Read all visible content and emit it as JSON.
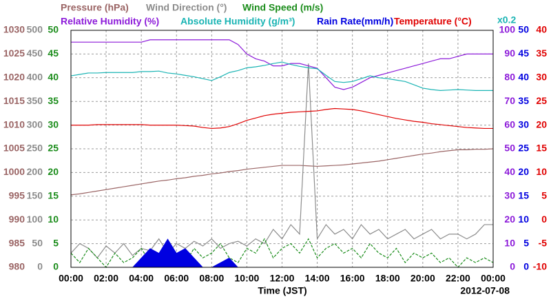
{
  "chart_data": {
    "type": "line",
    "xlim": [
      0,
      24
    ],
    "xticks": [
      {
        "value": 0,
        "label": "00:00"
      },
      {
        "value": 2,
        "label": "02:00"
      },
      {
        "value": 4,
        "label": "04:00"
      },
      {
        "value": 6,
        "label": "06:00"
      },
      {
        "value": 8,
        "label": "08:00"
      },
      {
        "value": 10,
        "label": "10:00"
      },
      {
        "value": 12,
        "label": "12:00"
      },
      {
        "value": 14,
        "label": "14:00"
      },
      {
        "value": 16,
        "label": "16:00"
      },
      {
        "value": 18,
        "label": "18:00"
      },
      {
        "value": 20,
        "label": "20:00"
      },
      {
        "value": 22,
        "label": "22:00"
      },
      {
        "value": 24,
        "label": "00:00"
      }
    ],
    "x_label": "Time (JST)",
    "date_label": "2012-07-08",
    "axis_note": "x0.2",
    "grid": true,
    "y_axes": [
      {
        "id": "pressure",
        "side": "left",
        "color": "#9a6464",
        "ylim": [
          980,
          1030
        ],
        "yticks": [
          980,
          985,
          990,
          995,
          1000,
          1005,
          1010,
          1015,
          1020,
          1025,
          1030
        ]
      },
      {
        "id": "winddir",
        "side": "left",
        "color": "#8c8c8c",
        "ylim": [
          0,
          500
        ],
        "yticks": [
          0,
          50,
          100,
          150,
          200,
          250,
          300,
          350,
          400,
          450,
          500
        ]
      },
      {
        "id": "windspeed",
        "side": "left",
        "color": "#1a8c1a",
        "ylim": [
          0,
          50
        ],
        "yticks": [
          0,
          5,
          10,
          15,
          20,
          25,
          30,
          35,
          40,
          45,
          50
        ]
      },
      {
        "id": "rh",
        "side": "right",
        "color": "#8c1ad9",
        "ylim": [
          0,
          100
        ],
        "yticks": [
          0,
          10,
          20,
          30,
          40,
          50,
          60,
          70,
          80,
          90,
          100
        ]
      },
      {
        "id": "rain",
        "side": "right",
        "color": "#0000e0",
        "ylim": [
          0,
          50
        ],
        "yticks": [
          0,
          5,
          10,
          15,
          20,
          25,
          30,
          35,
          40,
          45,
          50
        ]
      },
      {
        "id": "temp",
        "side": "right",
        "color": "#e00000",
        "ylim": [
          -10,
          40
        ],
        "yticks": [
          -10,
          -5,
          0,
          5,
          10,
          15,
          20,
          25,
          30,
          35,
          40
        ]
      }
    ],
    "x": [
      0,
      0.5,
      1,
      1.5,
      2,
      2.5,
      3,
      3.5,
      4,
      4.5,
      5,
      5.5,
      6,
      6.5,
      7,
      7.5,
      8,
      8.5,
      9,
      9.5,
      10,
      10.5,
      11,
      11.5,
      12,
      12.5,
      13,
      13.5,
      14,
      14.5,
      15,
      15.5,
      16,
      16.5,
      17,
      17.5,
      18,
      18.5,
      19,
      19.5,
      20,
      20.5,
      21,
      21.5,
      22,
      22.5,
      23,
      23.5,
      24
    ],
    "series": [
      {
        "name": "Pressure (hPa)",
        "color": "#9a6464",
        "axis": "pressure",
        "values": [
          995.3,
          995.5,
          995.8,
          996.1,
          996.4,
          996.7,
          997,
          997.3,
          997.6,
          997.9,
          998.2,
          998.4,
          998.7,
          998.9,
          999.2,
          999.4,
          999.7,
          999.9,
          1000.2,
          1000.4,
          1000.7,
          1000.9,
          1001.1,
          1001.3,
          1001.5,
          1001.5,
          1001.5,
          1001.4,
          1001.3,
          1001.4,
          1001.5,
          1001.6,
          1001.8,
          1002,
          1002.2,
          1002.4,
          1002.7,
          1003,
          1003.3,
          1003.6,
          1003.9,
          1004.1,
          1004.4,
          1004.6,
          1004.8,
          1004.8,
          1004.9,
          1004.9,
          1005
        ]
      },
      {
        "name": "Wind Direction (°)",
        "color": "#8c8c8c",
        "axis": "winddir",
        "values": [
          30,
          50,
          40,
          20,
          45,
          30,
          50,
          25,
          40,
          35,
          60,
          30,
          50,
          40,
          55,
          45,
          60,
          40,
          50,
          55,
          45,
          60,
          50,
          80,
          60,
          90,
          70,
          430,
          60,
          90,
          70,
          80,
          60,
          90,
          70,
          80,
          60,
          70,
          80,
          60,
          70,
          80,
          60,
          70,
          70,
          60,
          70,
          90,
          90
        ]
      },
      {
        "name": "Wind Speed (m/s)",
        "color": "#1a8c1a",
        "axis": "windspeed",
        "dashed": true,
        "values": [
          3,
          1,
          4,
          2,
          0,
          3,
          1,
          2,
          4,
          1,
          2,
          5,
          3,
          1,
          4,
          2,
          3,
          5,
          2,
          1,
          4,
          3,
          6,
          2,
          4,
          5,
          3,
          6,
          2,
          4,
          5,
          3,
          4,
          2,
          5,
          3,
          2,
          4,
          1,
          3,
          2,
          3,
          1,
          2,
          0,
          2,
          1,
          2,
          1
        ]
      },
      {
        "name": "Relative Humidity (%)",
        "color": "#8c1ad9",
        "axis": "rh",
        "values": [
          95,
          95,
          95,
          95,
          95,
          95,
          95,
          95,
          95,
          96,
          96,
          96,
          96,
          96,
          96,
          96,
          96,
          96,
          96,
          94,
          90,
          88,
          87,
          85,
          85,
          86,
          86,
          85,
          84,
          80,
          76,
          75,
          76,
          78,
          80,
          81,
          82,
          83,
          84,
          85,
          86,
          87,
          88,
          88,
          89,
          90,
          90,
          90,
          90
        ]
      },
      {
        "name": "Absolute Humidity (g/m³)",
        "color": "#1ab4b4",
        "axis": "rain",
        "values": [
          40.4,
          40.7,
          41,
          41,
          41.1,
          41.1,
          41.1,
          41.1,
          41.3,
          41.3,
          41.4,
          41,
          40.8,
          40.5,
          40.2,
          39.8,
          39.4,
          40.2,
          41.1,
          41.5,
          42.1,
          42.3,
          42.6,
          43,
          43.3,
          42.8,
          42.4,
          42.1,
          41.9,
          40.5,
          39.2,
          39,
          39.2,
          39.8,
          40.4,
          40,
          39.8,
          39.5,
          39.2,
          38.5,
          37.8,
          37.5,
          37.3,
          37.4,
          37.5,
          37.4,
          37.3,
          37.3,
          37.3
        ]
      },
      {
        "name": "Rain Rate(mm/h)",
        "color": "#0000e0",
        "axis": "rain",
        "filled": true,
        "values": [
          0,
          0,
          0,
          0,
          0,
          0,
          0,
          0,
          2,
          4,
          3,
          6,
          3,
          4,
          2,
          0,
          0,
          1,
          2,
          0,
          0,
          0,
          0,
          0,
          0,
          0,
          0,
          0,
          0,
          0,
          0,
          0,
          0,
          0,
          0,
          0,
          0,
          0,
          0,
          0,
          0,
          0,
          0,
          0,
          0,
          0,
          0,
          0,
          0
        ]
      },
      {
        "name": "Temperature (°C)",
        "color": "#e00000",
        "axis": "temp",
        "values": [
          20,
          20,
          20,
          20.1,
          20.1,
          20.1,
          20.1,
          20.1,
          20.1,
          20,
          20,
          20,
          20,
          19.9,
          19.8,
          19.5,
          19.3,
          19.4,
          19.7,
          20.3,
          21,
          21.5,
          22,
          22.3,
          22.5,
          22.7,
          22.8,
          22.9,
          23,
          23.3,
          23.5,
          23.4,
          23.3,
          23,
          22.6,
          22.2,
          21.8,
          21.4,
          21.1,
          20.8,
          20.6,
          20.3,
          20.1,
          19.9,
          19.7,
          19.5,
          19.4,
          19.3,
          19.3
        ]
      }
    ]
  }
}
